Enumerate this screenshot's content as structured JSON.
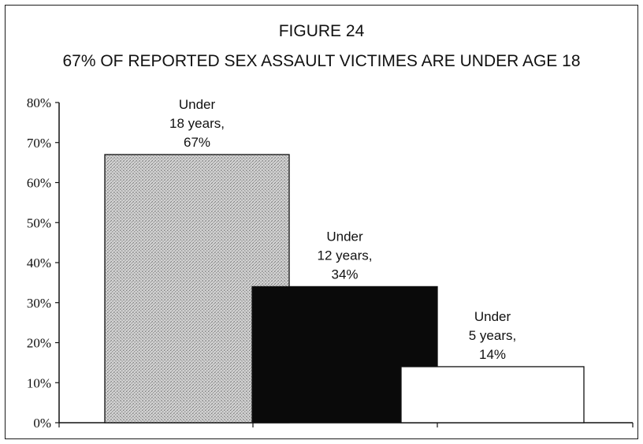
{
  "chart_data": {
    "type": "bar",
    "title": "FIGURE 24",
    "subtitle": "67% OF REPORTED SEX ASSAULT VICTIMES ARE UNDER AGE 18",
    "categories": [
      "Under 18 years",
      "Under 12 years",
      "Under 5 years"
    ],
    "values": [
      67,
      34,
      14
    ],
    "data_labels": [
      [
        "Under",
        "18 years,",
        "67%"
      ],
      [
        "Under",
        "12 years,",
        "34%"
      ],
      [
        "Under",
        "5 years,",
        "14%"
      ]
    ],
    "bar_fills": [
      "stipple-gray",
      "black",
      "white"
    ],
    "colors": {
      "stipple": "#c4c4c4",
      "dark": "#0a0a0a",
      "light": "#ffffff",
      "outline": "#111111"
    },
    "ylim": [
      0,
      80
    ],
    "yticks": [
      "0%",
      "10%",
      "20%",
      "30%",
      "40%",
      "50%",
      "60%",
      "70%",
      "80%"
    ],
    "grid": false,
    "legend": "none",
    "xlabel": "",
    "ylabel": ""
  }
}
